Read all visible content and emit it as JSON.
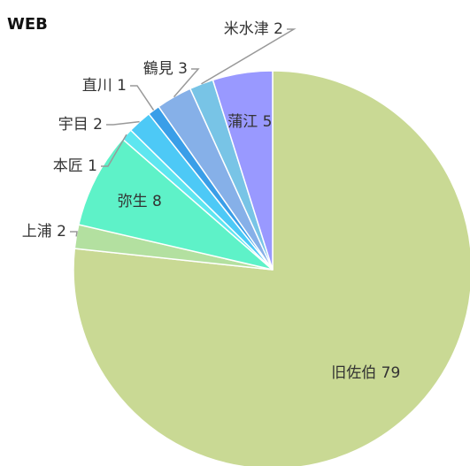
{
  "chart_data": {
    "type": "pie",
    "title": "WEB",
    "categories": [
      "旧佐伯",
      "上浦",
      "弥生",
      "本匠",
      "宇目",
      "直川",
      "鶴見",
      "米水津",
      "蒲江"
    ],
    "values": [
      79,
      2,
      8,
      1,
      2,
      1,
      3,
      2,
      5
    ],
    "colors": [
      "#c9d994",
      "#b3e0a0",
      "#5ef2c8",
      "#5ee6f0",
      "#4dc9f6",
      "#3a9ee8",
      "#86b0e8",
      "#78c4e6",
      "#9999ff"
    ]
  }
}
